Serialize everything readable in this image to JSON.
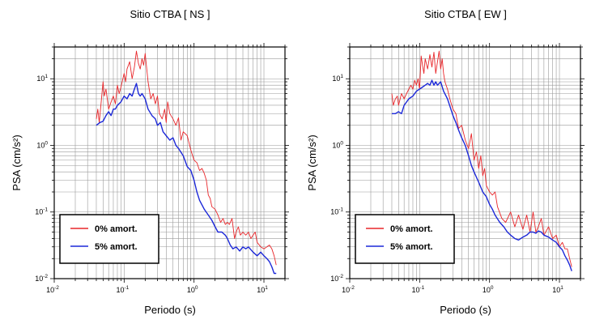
{
  "chart_data": [
    {
      "type": "line",
      "title": "Sitio CTBA [ NS ]",
      "xlabel": "Periodo (s)",
      "ylabel": "PSA (cm/s²)",
      "xscale": "log",
      "yscale": "log",
      "xlim": [
        0.01,
        20
      ],
      "ylim": [
        0.01,
        30
      ],
      "grid": true,
      "legend_position": "bottom-left",
      "x_ticks": [
        {
          "value": 0.01,
          "base": "10",
          "exp": "-2"
        },
        {
          "value": 0.1,
          "base": "10",
          "exp": "-1"
        },
        {
          "value": 1,
          "base": "10",
          "exp": "0"
        },
        {
          "value": 10,
          "base": "10",
          "exp": "1"
        }
      ],
      "y_ticks": [
        {
          "value": 0.01,
          "base": "10",
          "exp": "-2"
        },
        {
          "value": 0.1,
          "base": "10",
          "exp": "-1"
        },
        {
          "value": 1,
          "base": "10",
          "exp": "0"
        },
        {
          "value": 10,
          "base": "10",
          "exp": "1"
        }
      ],
      "series": [
        {
          "name": "0% amort.",
          "color": "#e8262a",
          "x": [
            0.04,
            0.042,
            0.044,
            0.047,
            0.05,
            0.052,
            0.055,
            0.06,
            0.065,
            0.07,
            0.075,
            0.08,
            0.085,
            0.09,
            0.1,
            0.105,
            0.11,
            0.12,
            0.13,
            0.14,
            0.15,
            0.16,
            0.17,
            0.18,
            0.19,
            0.2,
            0.22,
            0.24,
            0.26,
            0.28,
            0.3,
            0.32,
            0.35,
            0.38,
            0.4,
            0.42,
            0.45,
            0.5,
            0.55,
            0.6,
            0.65,
            0.7,
            0.8,
            0.9,
            1.0,
            1.1,
            1.2,
            1.3,
            1.4,
            1.5,
            1.6,
            1.7,
            1.8,
            2.0,
            2.2,
            2.4,
            2.6,
            2.8,
            3.0,
            3.2,
            3.5,
            3.8,
            4.0,
            4.3,
            4.6,
            5.0,
            5.5,
            6.0,
            6.5,
            7.0,
            7.5,
            8.0,
            9.0,
            10.0,
            11.0,
            12.0,
            13.0,
            14.0,
            15.0
          ],
          "y": [
            2.5,
            3.5,
            2.2,
            4.5,
            9.0,
            5.5,
            7.0,
            3.5,
            4.5,
            5.5,
            4.2,
            8.0,
            6.0,
            7.5,
            12.0,
            9.0,
            14.0,
            18.0,
            10.0,
            15.0,
            26.0,
            17.0,
            14.0,
            20.0,
            16.0,
            24.0,
            9.0,
            5.0,
            6.0,
            4.2,
            5.5,
            3.0,
            2.5,
            3.5,
            2.2,
            4.5,
            3.0,
            2.5,
            2.0,
            2.6,
            1.2,
            1.6,
            1.4,
            0.85,
            0.6,
            0.55,
            0.42,
            0.45,
            0.38,
            0.3,
            0.18,
            0.16,
            0.12,
            0.11,
            0.09,
            0.07,
            0.08,
            0.065,
            0.07,
            0.065,
            0.08,
            0.04,
            0.05,
            0.06,
            0.045,
            0.05,
            0.045,
            0.05,
            0.04,
            0.045,
            0.05,
            0.035,
            0.03,
            0.028,
            0.03,
            0.032,
            0.028,
            0.022,
            0.016
          ]
        },
        {
          "name": "5% amort.",
          "color": "#1c28d8",
          "x": [
            0.04,
            0.045,
            0.05,
            0.055,
            0.06,
            0.065,
            0.07,
            0.075,
            0.08,
            0.09,
            0.1,
            0.11,
            0.12,
            0.13,
            0.14,
            0.15,
            0.16,
            0.17,
            0.18,
            0.2,
            0.22,
            0.25,
            0.28,
            0.3,
            0.33,
            0.36,
            0.4,
            0.45,
            0.5,
            0.55,
            0.6,
            0.7,
            0.8,
            0.9,
            1.0,
            1.1,
            1.2,
            1.4,
            1.6,
            1.8,
            2.0,
            2.2,
            2.5,
            2.8,
            3.0,
            3.3,
            3.6,
            4.0,
            4.5,
            5.0,
            5.5,
            6.0,
            7.0,
            8.0,
            9.0,
            10.0,
            11.0,
            12.0,
            13.0,
            14.0,
            15.0
          ],
          "y": [
            2.0,
            2.2,
            2.3,
            2.8,
            3.2,
            2.8,
            3.5,
            3.5,
            4.0,
            4.5,
            5.5,
            5.0,
            6.0,
            5.5,
            7.0,
            8.5,
            6.0,
            5.5,
            6.0,
            5.0,
            3.5,
            2.8,
            2.5,
            2.0,
            2.2,
            1.6,
            1.4,
            1.2,
            1.3,
            1.0,
            0.9,
            0.7,
            0.48,
            0.42,
            0.3,
            0.2,
            0.15,
            0.11,
            0.09,
            0.075,
            0.06,
            0.05,
            0.05,
            0.045,
            0.04,
            0.032,
            0.028,
            0.03,
            0.026,
            0.03,
            0.028,
            0.03,
            0.025,
            0.022,
            0.025,
            0.022,
            0.02,
            0.018,
            0.015,
            0.012,
            0.012
          ]
        }
      ]
    },
    {
      "type": "line",
      "title": "Sitio CTBA [ EW ]",
      "xlabel": "Periodo (s)",
      "ylabel": "PSA (cm/s²)",
      "xscale": "log",
      "yscale": "log",
      "xlim": [
        0.01,
        20
      ],
      "ylim": [
        0.01,
        30
      ],
      "grid": true,
      "legend_position": "bottom-left",
      "x_ticks": [
        {
          "value": 0.01,
          "base": "10",
          "exp": "-2"
        },
        {
          "value": 0.1,
          "base": "10",
          "exp": "-1"
        },
        {
          "value": 1,
          "base": "10",
          "exp": "0"
        },
        {
          "value": 10,
          "base": "10",
          "exp": "1"
        }
      ],
      "y_ticks": [
        {
          "value": 0.01,
          "base": "10",
          "exp": "-2"
        },
        {
          "value": 0.1,
          "base": "10",
          "exp": "-1"
        },
        {
          "value": 1,
          "base": "10",
          "exp": "0"
        },
        {
          "value": 10,
          "base": "10",
          "exp": "1"
        }
      ],
      "series": [
        {
          "name": "0% amort.",
          "color": "#e8262a",
          "x": [
            0.04,
            0.042,
            0.045,
            0.048,
            0.05,
            0.055,
            0.06,
            0.065,
            0.07,
            0.075,
            0.08,
            0.085,
            0.09,
            0.095,
            0.1,
            0.105,
            0.11,
            0.115,
            0.12,
            0.13,
            0.14,
            0.15,
            0.16,
            0.17,
            0.18,
            0.19,
            0.2,
            0.21,
            0.22,
            0.23,
            0.25,
            0.27,
            0.3,
            0.33,
            0.36,
            0.4,
            0.45,
            0.5,
            0.55,
            0.6,
            0.65,
            0.7,
            0.75,
            0.8,
            0.85,
            0.9,
            1.0,
            1.1,
            1.2,
            1.3,
            1.5,
            1.7,
            2.0,
            2.3,
            2.6,
            3.0,
            3.4,
            3.8,
            4.2,
            4.6,
            5.0,
            5.5,
            6.0,
            7.0,
            8.0,
            9.0,
            10.0,
            11.0,
            12.0,
            13.0,
            14.0,
            15.0
          ],
          "y": [
            6.0,
            4.0,
            5.0,
            5.5,
            4.0,
            6.0,
            5.0,
            6.0,
            7.0,
            8.0,
            7.0,
            9.5,
            8.0,
            10.0,
            7.0,
            22.0,
            16.0,
            12.0,
            20.0,
            14.0,
            23.0,
            15.0,
            25.0,
            12.0,
            18.0,
            26.0,
            14.0,
            20.0,
            12.0,
            9.0,
            7.0,
            5.0,
            3.5,
            3.0,
            1.8,
            2.0,
            1.2,
            0.9,
            1.5,
            0.6,
            0.8,
            0.45,
            0.7,
            0.35,
            0.45,
            0.25,
            0.2,
            0.18,
            0.2,
            0.12,
            0.08,
            0.07,
            0.1,
            0.06,
            0.09,
            0.055,
            0.09,
            0.05,
            0.1,
            0.05,
            0.06,
            0.08,
            0.045,
            0.06,
            0.04,
            0.045,
            0.03,
            0.035,
            0.028,
            0.028,
            0.02,
            0.015
          ]
        },
        {
          "name": "5% amort.",
          "color": "#1c28d8",
          "x": [
            0.04,
            0.045,
            0.05,
            0.055,
            0.06,
            0.07,
            0.08,
            0.09,
            0.1,
            0.11,
            0.12,
            0.13,
            0.14,
            0.15,
            0.16,
            0.17,
            0.18,
            0.2,
            0.22,
            0.25,
            0.28,
            0.3,
            0.33,
            0.36,
            0.4,
            0.45,
            0.5,
            0.55,
            0.6,
            0.7,
            0.8,
            0.9,
            1.0,
            1.1,
            1.2,
            1.4,
            1.6,
            1.8,
            2.0,
            2.3,
            2.6,
            3.0,
            3.4,
            3.8,
            4.2,
            4.6,
            5.0,
            5.5,
            6.0,
            7.0,
            8.0,
            9.0,
            10.0,
            11.0,
            12.0,
            13.0,
            14.0,
            15.0
          ],
          "y": [
            3.0,
            3.0,
            3.2,
            3.0,
            4.0,
            5.0,
            5.5,
            6.5,
            7.0,
            7.5,
            8.0,
            8.5,
            8.0,
            9.5,
            8.0,
            9.0,
            8.0,
            9.0,
            6.5,
            5.0,
            3.5,
            2.8,
            2.2,
            1.7,
            1.3,
            1.0,
            0.7,
            0.5,
            0.4,
            0.28,
            0.2,
            0.17,
            0.13,
            0.11,
            0.09,
            0.07,
            0.06,
            0.05,
            0.045,
            0.04,
            0.038,
            0.042,
            0.045,
            0.05,
            0.05,
            0.048,
            0.052,
            0.05,
            0.045,
            0.042,
            0.038,
            0.035,
            0.03,
            0.027,
            0.022,
            0.019,
            0.016,
            0.013
          ]
        }
      ]
    }
  ]
}
